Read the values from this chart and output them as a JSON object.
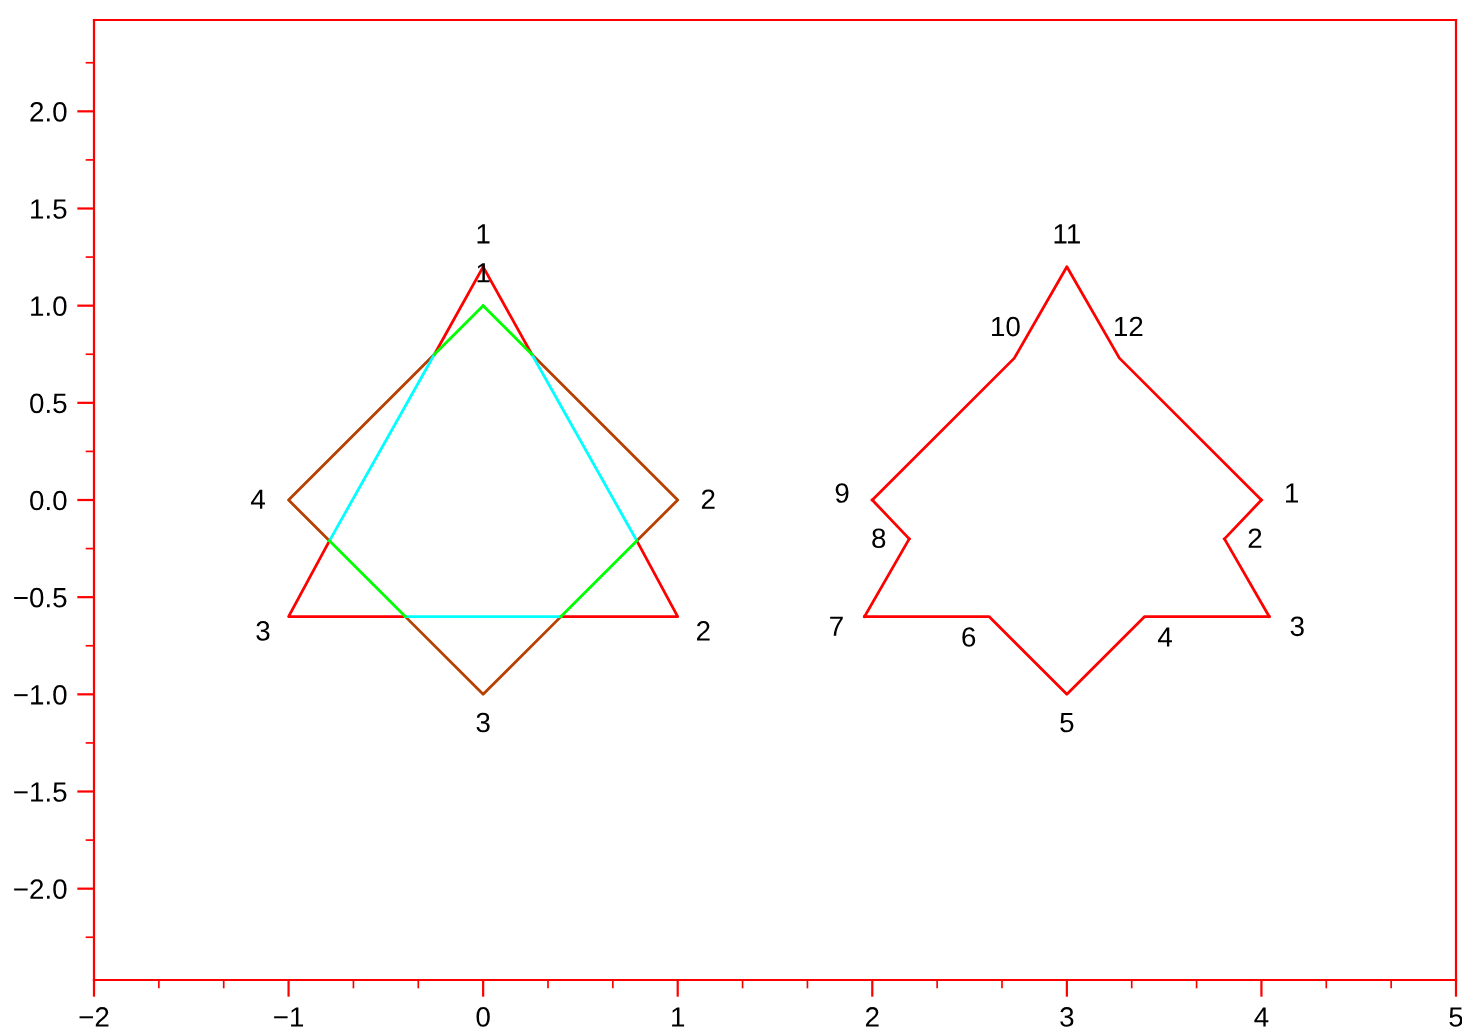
{
  "chart_data": {
    "type": "line",
    "marker": "none",
    "line_style": "solid",
    "grid": false,
    "legend": false,
    "xlim": [
      -2,
      5
    ],
    "ylim": [
      -2.47,
      2.47
    ],
    "xticks": [
      -2,
      -1,
      0,
      1,
      2,
      3,
      4,
      5
    ],
    "yticks": [
      {
        "value": -2,
        "label": "−2.0"
      },
      {
        "value": -1.5,
        "label": "−1.5"
      },
      {
        "value": -1,
        "label": "−1.0"
      },
      {
        "value": -0.5,
        "label": "−0.5"
      },
      {
        "value": 0,
        "label": "0.0"
      },
      {
        "value": 0.5,
        "label": "0.5"
      },
      {
        "value": 1,
        "label": "1.0"
      },
      {
        "value": 1.5,
        "label": "1.5"
      },
      {
        "value": 2,
        "label": "2.0"
      }
    ],
    "series": [
      {
        "color": "#ff0000",
        "x": [
          0,
          0.25
        ],
        "values": [
          1.2,
          0.75
        ]
      },
      {
        "color": "#ff0000",
        "x": [
          0.79,
          1,
          0.4
        ],
        "values": [
          -0.21,
          -0.6,
          -0.6
        ]
      },
      {
        "color": "#ff0000",
        "x": [
          -0.4,
          -1,
          -0.79
        ],
        "values": [
          -0.6,
          -0.6,
          -0.21
        ]
      },
      {
        "color": "#ff0000",
        "x": [
          -0.25,
          0
        ],
        "values": [
          0.75,
          1.2
        ]
      },
      {
        "color": "#b84000",
        "x": [
          0.25,
          1,
          0.79
        ],
        "values": [
          0.75,
          0,
          -0.21
        ]
      },
      {
        "color": "#b84000",
        "x": [
          0.4,
          0,
          -0.4
        ],
        "values": [
          -0.6,
          -1,
          -0.6
        ]
      },
      {
        "color": "#b84000",
        "x": [
          -0.79,
          -1,
          -0.25
        ],
        "values": [
          -0.21,
          0,
          0.75
        ]
      },
      {
        "color": "#ff0000",
        "x": [
          4,
          3.81
        ],
        "values": [
          0,
          -0.2
        ]
      },
      {
        "color": "#ff0000",
        "x": [
          3.81,
          4.04
        ],
        "values": [
          -0.2,
          -0.6
        ]
      },
      {
        "color": "#ff0000",
        "x": [
          4.04,
          3.4,
          3,
          2.6,
          1.96
        ],
        "values": [
          -0.6,
          -0.6,
          -1,
          -0.6,
          -0.6
        ]
      },
      {
        "color": "#ff0000",
        "x": [
          1.96,
          2.19
        ],
        "values": [
          -0.6,
          -0.2
        ]
      },
      {
        "color": "#ff0000",
        "x": [
          2.19,
          2
        ],
        "values": [
          -0.2,
          0
        ]
      },
      {
        "color": "#ff0000",
        "x": [
          2,
          2.73,
          3,
          3.27,
          4
        ],
        "values": [
          0,
          0.73,
          1.2,
          0.73,
          0
        ]
      },
      {
        "color": "#00ffff",
        "x": [
          0.25,
          0.79
        ],
        "values": [
          0.75,
          -0.21
        ]
      },
      {
        "color": "#00ffff",
        "x": [
          0.4,
          -0.4
        ],
        "values": [
          -0.6,
          -0.6
        ]
      },
      {
        "color": "#00ffff",
        "x": [
          -0.79,
          -0.25
        ],
        "values": [
          -0.21,
          0.75
        ]
      },
      {
        "color": "#00ff00",
        "x": [
          0,
          0.25
        ],
        "values": [
          1,
          0.75
        ]
      },
      {
        "color": "#00ff00",
        "x": [
          0.79,
          0.4
        ],
        "values": [
          -0.21,
          -0.6
        ]
      },
      {
        "color": "#00ff00",
        "x": [
          -0.4,
          -0.79
        ],
        "values": [
          -0.6,
          -0.21
        ]
      },
      {
        "color": "#00ff00",
        "x": [
          -0.25,
          0
        ],
        "values": [
          0.75,
          1
        ]
      }
    ],
    "annotations": [
      {
        "text": "1",
        "x": 0,
        "y": 1.2
      },
      {
        "text": "2",
        "x": 1,
        "y": -0.6
      },
      {
        "text": "3",
        "x": -1,
        "y": -0.6
      },
      {
        "text": "1",
        "x": 0,
        "y": 1
      },
      {
        "text": "2",
        "x": 1,
        "y": 0
      },
      {
        "text": "3",
        "x": 0,
        "y": -1
      },
      {
        "text": "4",
        "x": -1,
        "y": 0
      },
      {
        "text": "1",
        "x": 4,
        "y": 0
      },
      {
        "text": "2",
        "x": 3.81,
        "y": -0.2
      },
      {
        "text": "3",
        "x": 4.04,
        "y": -0.6
      },
      {
        "text": "4",
        "x": 3.4,
        "y": -0.6
      },
      {
        "text": "5",
        "x": 3,
        "y": -1
      },
      {
        "text": "6",
        "x": 2.6,
        "y": -0.6
      },
      {
        "text": "7",
        "x": 1.96,
        "y": -0.6
      },
      {
        "text": "8",
        "x": 2.19,
        "y": -0.2
      },
      {
        "text": "9",
        "x": 2,
        "y": 0
      },
      {
        "text": "10",
        "x": 2.73,
        "y": 0.73
      },
      {
        "text": "11",
        "x": 3,
        "y": 1.2
      },
      {
        "text": "12",
        "x": 3.27,
        "y": 0.73
      }
    ]
  }
}
